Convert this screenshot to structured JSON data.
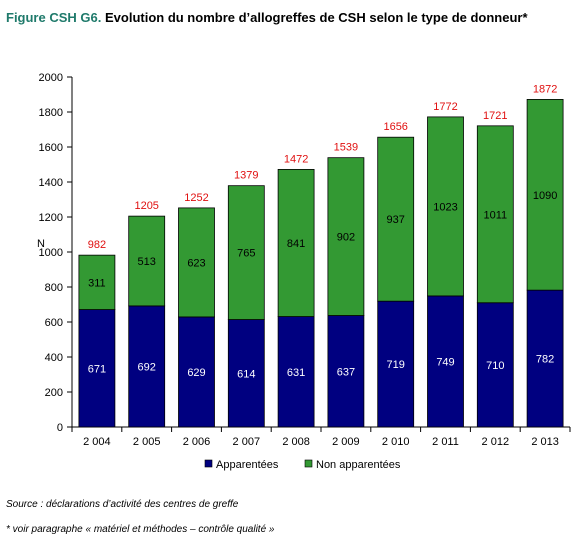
{
  "figure": {
    "prefix": "Figure CSH G6.",
    "title": "Evolution du nombre d’allogreffes de CSH selon le type de donneur*"
  },
  "footnotes": {
    "source": "Source : déclarations d’activité des centres de greffe",
    "note": "* voir paragraphe « matériel et méthodes – contrôle qualité »"
  },
  "colors": {
    "apparentees": "#000080",
    "non_apparentees": "#339933",
    "total_label": "#e01010"
  },
  "chart_data": {
    "type": "bar",
    "stacked": true,
    "ylabel": "N",
    "ylim": [
      0,
      2000
    ],
    "yticks": [
      0,
      200,
      400,
      600,
      800,
      1000,
      1200,
      1400,
      1600,
      1800,
      2000
    ],
    "grid": false,
    "legend_position": "bottom",
    "categories": [
      "2 004",
      "2 005",
      "2 006",
      "2 007",
      "2 008",
      "2 009",
      "2 010",
      "2 011",
      "2 012",
      "2 013"
    ],
    "series": [
      {
        "name": "Apparentées",
        "values": [
          671,
          692,
          629,
          614,
          631,
          637,
          719,
          749,
          710,
          782
        ]
      },
      {
        "name": "Non apparentées",
        "values": [
          311,
          513,
          623,
          765,
          841,
          902,
          937,
          1023,
          1011,
          1090
        ]
      }
    ],
    "totals": [
      982,
      1205,
      1252,
      1379,
      1472,
      1539,
      1656,
      1772,
      1721,
      1872
    ]
  }
}
